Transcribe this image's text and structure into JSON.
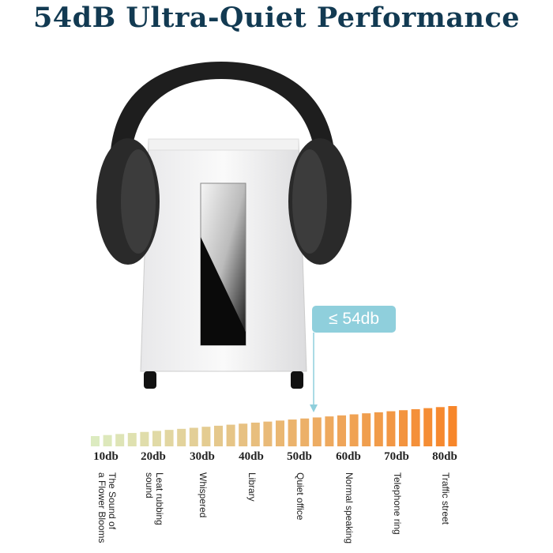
{
  "title": "54dB Ultra-Quiet Performance",
  "callout": "≤ 54db",
  "callout_color": "#8fcfdc",
  "title_color": "#123a52",
  "scale": {
    "bar_count": 30,
    "color_start": "#dcebc0",
    "color_end": "#f7862a",
    "ticks": [
      {
        "label": "10db",
        "desc": "The Sound of\na Flower Blooms"
      },
      {
        "label": "20db",
        "desc": "Leat rubbing\nsound"
      },
      {
        "label": "30db",
        "desc": "Whispered"
      },
      {
        "label": "40db",
        "desc": "Library"
      },
      {
        "label": "50db",
        "desc": "Quiet office"
      },
      {
        "label": "60db",
        "desc": "Normal speaking"
      },
      {
        "label": "70db",
        "desc": "Telephone ring"
      },
      {
        "label": "80db",
        "desc": "Traffic street"
      }
    ]
  }
}
